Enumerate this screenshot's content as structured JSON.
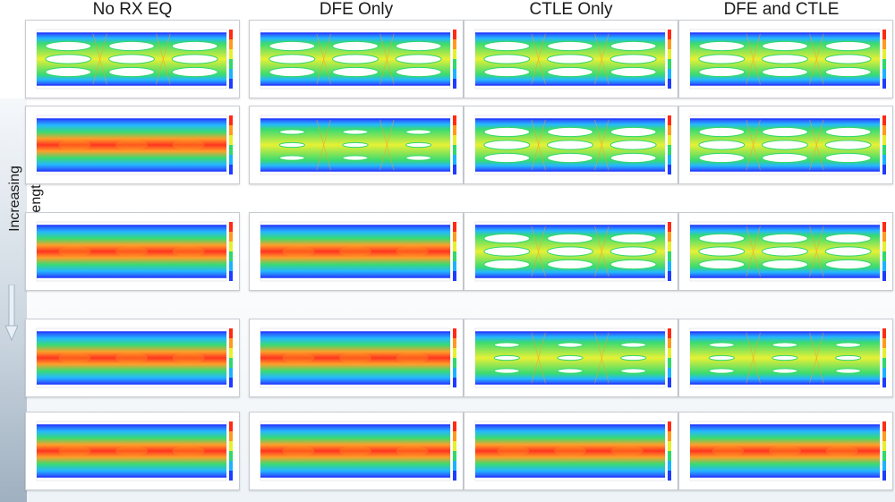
{
  "columns": [
    "No RX EQ",
    "DFE Only",
    "CTLE Only",
    "DFE and CTLE"
  ],
  "side_label": "Increasing Length",
  "icons": {
    "arrow": "down-arrow-icon"
  },
  "colormap": [
    "#1f3cff",
    "#19b4ff",
    "#2fd96a",
    "#e6f02a",
    "#ff9a1e",
    "#ff2a14"
  ],
  "grid": {
    "rows": 5,
    "cols": 4,
    "panels": [
      [
        "open",
        "open",
        "open",
        "open"
      ],
      [
        "closed",
        "partly-open",
        "open",
        "open"
      ],
      [
        "closed",
        "closed",
        "open",
        "open"
      ],
      [
        "closed",
        "closed",
        "partly-open",
        "partly-open"
      ],
      [
        "closed",
        "closed",
        "closed",
        "closed"
      ]
    ]
  }
}
